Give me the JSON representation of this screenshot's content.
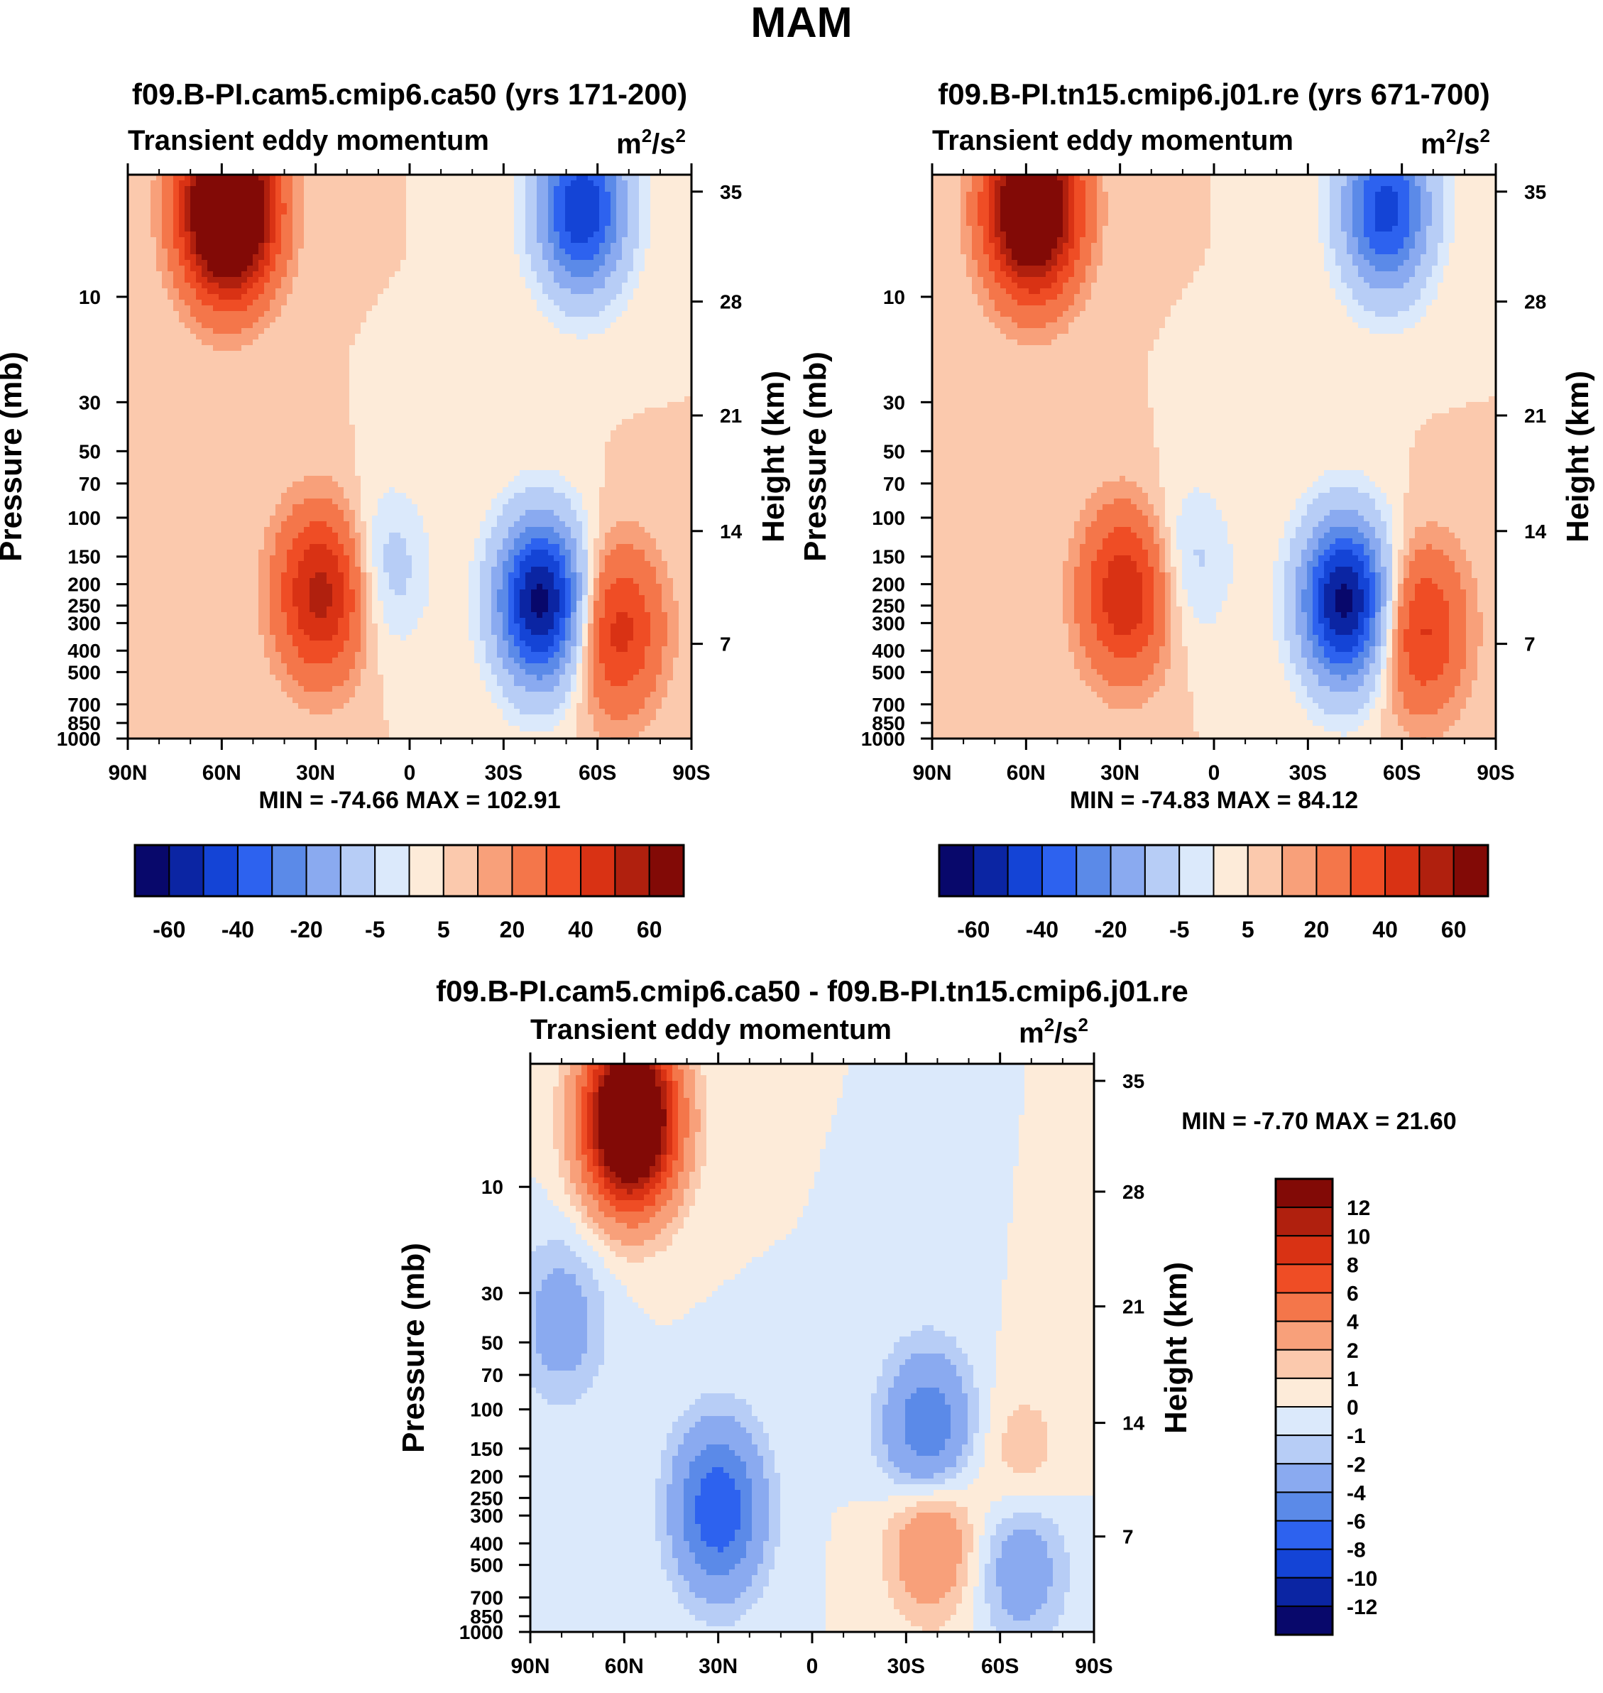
{
  "figure_title": "MAM",
  "colors": {
    "main_scale": [
      "#08086b",
      "#0b25a3",
      "#1444d6",
      "#2d62ef",
      "#5b8ae8",
      "#8aaaf0",
      "#b7cdf6",
      "#dbe9fb",
      "#fdebd9",
      "#fbc9ad",
      "#f8a07a",
      "#f4764a",
      "#ef4d25",
      "#d93214",
      "#b0200e",
      "#820a06"
    ],
    "diff_scale": [
      "#08086b",
      "#0b25a3",
      "#1444d6",
      "#2d62ef",
      "#5b8ae8",
      "#8aaaf0",
      "#b7cdf6",
      "#dbe9fb",
      "#fdebd9",
      "#fbc9ad",
      "#f8a07a",
      "#f4764a",
      "#ef4d25",
      "#d93214",
      "#b0200e",
      "#820a06"
    ]
  },
  "colorbar_main": {
    "labels": [
      "-60",
      "-40",
      "-20",
      "-5",
      "5",
      "20",
      "40",
      "60"
    ]
  },
  "colorbar_diff": {
    "labels": [
      "12",
      "10",
      "8",
      "6",
      "4",
      "2",
      "1",
      "0",
      "-1",
      "-2",
      "-4",
      "-6",
      "-8",
      "-10",
      "-12"
    ]
  },
  "chart_data": [
    {
      "type": "heatmap",
      "title": "f09.B-PI.cam5.cmip6.ca50 (yrs 171-200)",
      "subtitle": "Transient eddy momentum",
      "units": "m²/s²",
      "units_base": "m",
      "units_exp": "2",
      "units_mid": "/s",
      "xlabel": "",
      "ylabel": "Pressure (mb)",
      "y2label": "Height (km)",
      "xticks": [
        "90N",
        "60N",
        "30N",
        "0",
        "30S",
        "60S",
        "90S"
      ],
      "yticks": [
        "10",
        "30",
        "50",
        "70",
        "100",
        "150",
        "200",
        "250",
        "300",
        "400",
        "500",
        "700",
        "850",
        "1000"
      ],
      "y2ticks": [
        "35",
        "28",
        "21",
        "14",
        "7"
      ],
      "stats": "MIN = -74.66  MAX = 102.91",
      "contour_levels": [
        -70,
        -60,
        -50,
        -40,
        -30,
        -20,
        -10,
        -5,
        0,
        5,
        10,
        20,
        30,
        40,
        50,
        60,
        70
      ],
      "features": [
        {
          "lat": 58,
          "pressure": 4,
          "value": 102.9
        },
        {
          "lat": 28,
          "pressure": 220,
          "value": 45
        },
        {
          "lat": -42,
          "pressure": 240,
          "value": -74.7
        },
        {
          "lat": -66,
          "pressure": 320,
          "value": 35
        },
        {
          "lat": -55,
          "pressure": 4,
          "value": -60
        },
        {
          "lat": 8,
          "pressure": 170,
          "value": -15
        }
      ]
    },
    {
      "type": "heatmap",
      "title": "f09.B-PI.tn15.cmip6.j01.re (yrs 671-700)",
      "subtitle": "Transient eddy momentum",
      "units": "m²/s²",
      "units_base": "m",
      "units_exp": "2",
      "units_mid": "/s",
      "xlabel": "",
      "ylabel": "Pressure (mb)",
      "y2label": "Height (km)",
      "xticks": [
        "90N",
        "60N",
        "30N",
        "0",
        "30S",
        "60S",
        "90S"
      ],
      "yticks": [
        "10",
        "30",
        "50",
        "70",
        "100",
        "150",
        "200",
        "250",
        "300",
        "400",
        "500",
        "700",
        "850",
        "1000"
      ],
      "y2ticks": [
        "35",
        "28",
        "21",
        "14",
        "7"
      ],
      "stats": "MIN = -74.83  MAX =  84.12",
      "contour_levels": [
        -70,
        -60,
        -50,
        -40,
        -30,
        -20,
        -10,
        -5,
        0,
        5,
        10,
        20,
        30,
        40,
        50,
        60,
        70
      ],
      "features": [
        {
          "lat": 58,
          "pressure": 4,
          "value": 84.1
        },
        {
          "lat": 28,
          "pressure": 220,
          "value": 40
        },
        {
          "lat": -42,
          "pressure": 240,
          "value": -74.8
        },
        {
          "lat": -66,
          "pressure": 320,
          "value": 33
        },
        {
          "lat": -55,
          "pressure": 4,
          "value": -55
        },
        {
          "lat": 8,
          "pressure": 160,
          "value": -13
        }
      ]
    },
    {
      "type": "heatmap",
      "title": "f09.B-PI.cam5.cmip6.ca50 - f09.B-PI.tn15.cmip6.j01.re",
      "subtitle": "Transient eddy momentum",
      "units": "m²/s²",
      "units_base": "m",
      "units_exp": "2",
      "units_mid": "/s",
      "xlabel": "",
      "ylabel": "Pressure (mb)",
      "y2label": "Height (km)",
      "xticks": [
        "90N",
        "60N",
        "30N",
        "0",
        "30S",
        "60S",
        "90S"
      ],
      "yticks": [
        "10",
        "30",
        "50",
        "70",
        "100",
        "150",
        "200",
        "250",
        "300",
        "400",
        "500",
        "700",
        "850",
        "1000"
      ],
      "y2ticks": [
        "35",
        "28",
        "21",
        "14",
        "7"
      ],
      "stats": "MIN =  -7.70  MAX =  21.60",
      "contour_levels": [
        -12,
        -10,
        -8,
        -6,
        -4,
        -2,
        -1,
        0,
        1,
        2,
        4,
        6,
        8,
        10,
        12
      ],
      "features": [
        {
          "lat": 58,
          "pressure": 5,
          "value": 21.6
        },
        {
          "lat": 30,
          "pressure": 280,
          "value": -7.7
        },
        {
          "lat": -37,
          "pressure": 140,
          "value": -7
        },
        {
          "lat": -38,
          "pressure": 330,
          "value": 5.5
        },
        {
          "lat": -67,
          "pressure": 200,
          "value": 2.5
        },
        {
          "lat": -67,
          "pressure": 450,
          "value": -4
        },
        {
          "lat": 80,
          "pressure": 40,
          "value": -3
        }
      ]
    }
  ]
}
